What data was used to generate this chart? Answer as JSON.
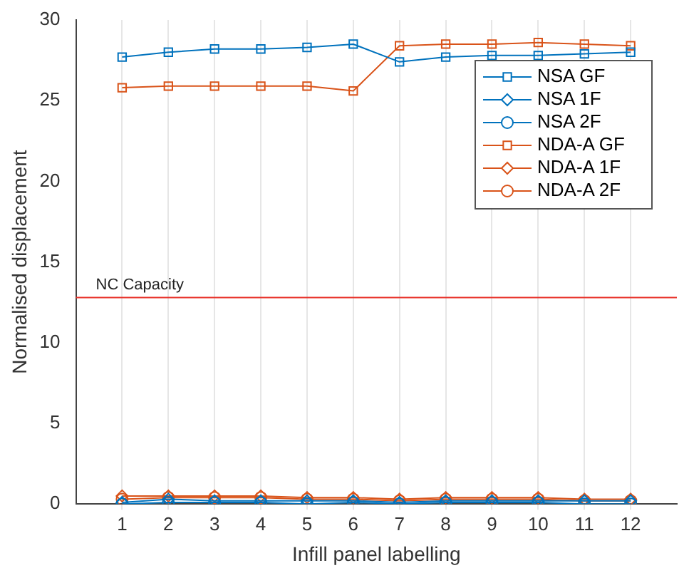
{
  "chart_data": {
    "type": "line",
    "xlabel": "Infill panel labelling",
    "ylabel": "Normalised displacement",
    "x": [
      1,
      2,
      3,
      4,
      5,
      6,
      7,
      8,
      9,
      10,
      11,
      12
    ],
    "xlim": [
      0,
      13
    ],
    "xticks": [
      1,
      2,
      3,
      4,
      5,
      6,
      7,
      8,
      9,
      10,
      11,
      12
    ],
    "ylim": [
      0,
      30
    ],
    "yticks": [
      0,
      5,
      10,
      15,
      20,
      25,
      30
    ],
    "grid": "x",
    "legend": "top right",
    "line_style": "solid",
    "series": [
      {
        "name": "NSA GF",
        "color": "#0072bd",
        "marker": "square",
        "values": [
          27.7,
          28.0,
          28.2,
          28.2,
          28.3,
          28.5,
          27.4,
          27.7,
          27.8,
          27.8,
          27.9,
          28.0
        ]
      },
      {
        "name": "NSA 1F",
        "color": "#0072bd",
        "marker": "diamond",
        "values": [
          0.1,
          0.3,
          0.2,
          0.2,
          0.2,
          0.2,
          0.1,
          0.2,
          0.2,
          0.2,
          0.2,
          0.2
        ]
      },
      {
        "name": "NSA 2F",
        "color": "#0072bd",
        "marker": "circle",
        "values": [
          0.0,
          0.1,
          0.1,
          0.1,
          0.0,
          0.1,
          0.0,
          0.1,
          0.1,
          0.1,
          0.0,
          0.0
        ]
      },
      {
        "name": "NDA-A GF",
        "color": "#d95319",
        "marker": "square",
        "values": [
          25.8,
          25.9,
          25.9,
          25.9,
          25.9,
          25.6,
          28.4,
          28.5,
          28.5,
          28.6,
          28.5,
          28.4
        ]
      },
      {
        "name": "NDA-A 1F",
        "color": "#d95319",
        "marker": "diamond",
        "values": [
          0.5,
          0.5,
          0.5,
          0.5,
          0.4,
          0.4,
          0.3,
          0.4,
          0.4,
          0.4,
          0.3,
          0.3
        ]
      },
      {
        "name": "NDA-A 2F",
        "color": "#d95319",
        "marker": "circle",
        "values": [
          0.3,
          0.4,
          0.4,
          0.4,
          0.3,
          0.3,
          0.2,
          0.3,
          0.3,
          0.3,
          0.2,
          0.2
        ]
      }
    ],
    "ref_lines": [
      {
        "axis": "y",
        "value": 12.8,
        "label": "NC Capacity",
        "color": "#e8332b"
      }
    ]
  }
}
